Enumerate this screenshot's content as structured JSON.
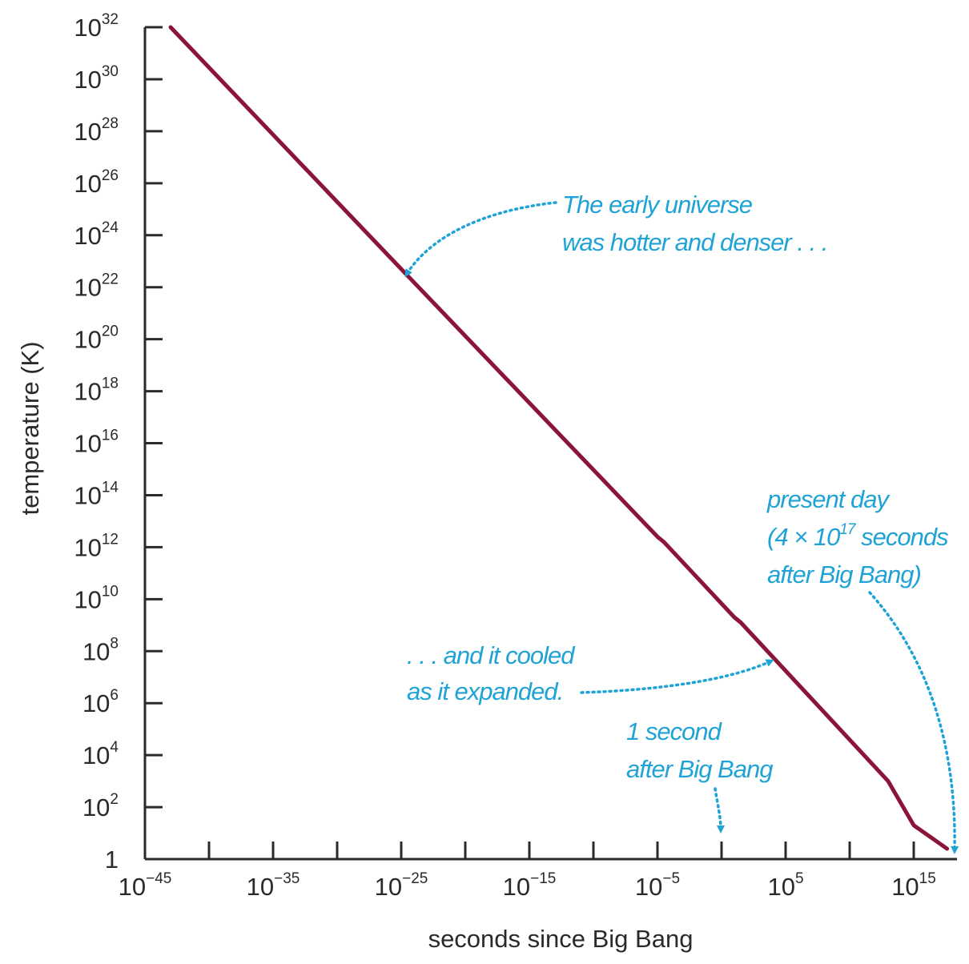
{
  "chart_data": {
    "type": "line",
    "title": "",
    "xlabel": "seconds since Big Bang",
    "ylabel": "temperature (K)",
    "x_scale": "log",
    "y_scale": "log",
    "xlim": [
      "1e-45",
      "1e18"
    ],
    "ylim": [
      "1",
      "1e32"
    ],
    "x_ticks": [
      {
        "base": "10",
        "exp": "−45"
      },
      {
        "base": "10",
        "exp": "−35"
      },
      {
        "base": "10",
        "exp": "−25"
      },
      {
        "base": "10",
        "exp": "−15"
      },
      {
        "base": "10",
        "exp": "−5"
      },
      {
        "base": "10",
        "exp": "5"
      },
      {
        "base": "10",
        "exp": "15"
      }
    ],
    "y_ticks": [
      {
        "base": "1",
        "exp": ""
      },
      {
        "base": "10",
        "exp": "2"
      },
      {
        "base": "10",
        "exp": "4"
      },
      {
        "base": "10",
        "exp": "6"
      },
      {
        "base": "10",
        "exp": "8"
      },
      {
        "base": "10",
        "exp": "10"
      },
      {
        "base": "10",
        "exp": "12"
      },
      {
        "base": "10",
        "exp": "14"
      },
      {
        "base": "10",
        "exp": "16"
      },
      {
        "base": "10",
        "exp": "18"
      },
      {
        "base": "10",
        "exp": "20"
      },
      {
        "base": "10",
        "exp": "22"
      },
      {
        "base": "10",
        "exp": "24"
      },
      {
        "base": "10",
        "exp": "26"
      },
      {
        "base": "10",
        "exp": "28"
      },
      {
        "base": "10",
        "exp": "30"
      },
      {
        "base": "10",
        "exp": "32"
      }
    ],
    "series": [
      {
        "color": "#8b1538",
        "points": [
          {
            "x": "1e-43",
            "y": "1e32"
          },
          {
            "x": "1e-25",
            "y": "1e22.7"
          },
          {
            "x": "1e-5",
            "y": "1e12.4"
          },
          {
            "x": "1e-4.5",
            "y": "1e12.2"
          },
          {
            "x": "1e1",
            "y": "1e9.3"
          },
          {
            "x": "1e1.5",
            "y": "1e9.1"
          },
          {
            "x": "1e13",
            "y": "1e3"
          },
          {
            "x": "1e15",
            "y": "1e1.3"
          },
          {
            "x": "4e17",
            "y": "1e0.4"
          }
        ]
      }
    ],
    "grid": false,
    "annotations": [
      {
        "lines": [
          "The early universe",
          "was hotter and denser . . ."
        ],
        "color": "#1fa3d6"
      },
      {
        "lines": [
          ". . . and it cooled",
          "as it expanded."
        ],
        "color": "#1fa3d6"
      },
      {
        "lines": [
          "1 second",
          "after Big Bang"
        ],
        "color": "#1fa3d6"
      },
      {
        "lines": [
          "present day",
          "(4 × 10",
          "17",
          " seconds",
          "after Big Bang)"
        ],
        "color": "#1fa3d6"
      }
    ]
  }
}
